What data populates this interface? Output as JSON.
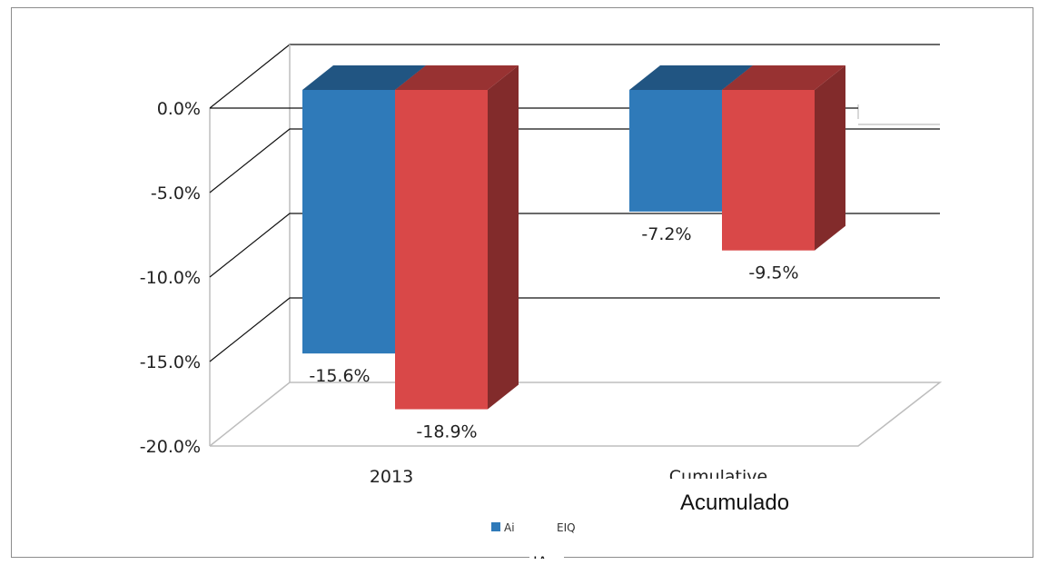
{
  "chart_data": {
    "type": "bar",
    "title": "",
    "xlabel": "",
    "ylabel": "",
    "categories": [
      "2013",
      "Cumulative"
    ],
    "series": [
      {
        "name": "Ai",
        "color": "#2f7ab9",
        "values": [
          -15.6,
          -7.2
        ],
        "labels": [
          "-15.6%",
          "-7.2%"
        ]
      },
      {
        "name": "EIQ",
        "color": "#d94848",
        "values": [
          -18.9,
          -9.5
        ],
        "labels": [
          "-18.9%",
          "-9.5%"
        ]
      }
    ],
    "ylim": [
      -20,
      0
    ],
    "y_ticks": [
      {
        "value": 0,
        "label": "0.0%"
      },
      {
        "value": -5,
        "label": "-5.0%"
      },
      {
        "value": -10,
        "label": "-10.0%"
      },
      {
        "value": -15,
        "label": "-15.0%"
      },
      {
        "value": -20,
        "label": "-20.0%"
      }
    ],
    "grid": true,
    "three_d": true,
    "legend": {
      "position": "bottom"
    }
  },
  "overlay": {
    "translation_label": "Acumulado",
    "footer_label": "IA"
  }
}
